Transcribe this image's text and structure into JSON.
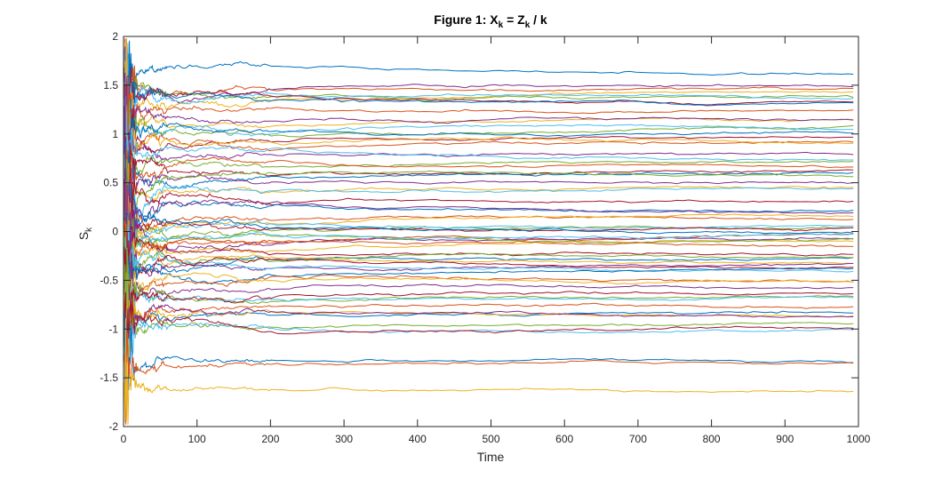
{
  "chart_data": {
    "type": "line",
    "title": {
      "main": "Figure 1: X",
      "sub1": "k",
      "eq": " = Z",
      "sub2": "k",
      "tail": " / k"
    },
    "xlabel": "Time",
    "ylabel": {
      "main": "S",
      "sub": "k"
    },
    "xlim": [
      0,
      1000
    ],
    "ylim": [
      -2,
      2
    ],
    "xticks": [
      0,
      100,
      200,
      300,
      400,
      500,
      600,
      700,
      800,
      900,
      1000
    ],
    "xtick_labels": [
      "0",
      "100",
      "200",
      "300",
      "400",
      "500",
      "600",
      "700",
      "800",
      "900",
      "1000"
    ],
    "yticks": [
      -2,
      -1.5,
      -1,
      -0.5,
      0,
      0.5,
      1,
      1.5,
      2
    ],
    "ytick_labels": [
      "-2",
      "-1.5",
      "-1",
      "-0.5",
      "0",
      "0.5",
      "1",
      "1.5",
      "2"
    ],
    "grid": false,
    "box": true,
    "colors": [
      "#0072BD",
      "#D95319",
      "#EDB120",
      "#7E2F8E",
      "#77AC30",
      "#4DBEEE",
      "#A2142F"
    ],
    "final_values": [
      1.6,
      1.47,
      1.45,
      1.42,
      1.38,
      1.36,
      1.33,
      1.3,
      1.28,
      1.13,
      1.11,
      1.08,
      1.06,
      0.97,
      0.95,
      0.93,
      0.87,
      0.84,
      0.74,
      0.7,
      0.66,
      0.62,
      0.58,
      0.53,
      0.5,
      0.48,
      0.44,
      0.28,
      0.2,
      0.18,
      0.15,
      0.12,
      0.1,
      0.05,
      0.03,
      0.01,
      -0.01,
      -0.03,
      -0.05,
      -0.08,
      -0.1,
      -0.2,
      -0.22,
      -0.24,
      -0.27,
      -0.3,
      -0.35,
      -0.38,
      -0.43,
      -0.47,
      -0.52,
      -0.55,
      -0.6,
      -0.63,
      -0.68,
      -0.72,
      -0.77,
      -0.8,
      -0.86,
      -0.88,
      -0.9,
      -0.93,
      -0.95,
      -1.36,
      -1.38,
      -1.6
    ]
  }
}
